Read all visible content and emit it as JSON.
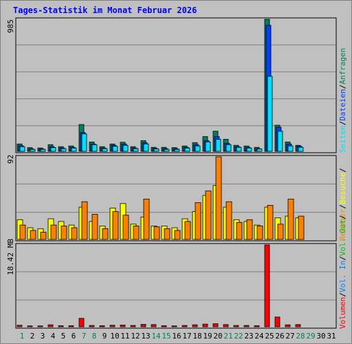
{
  "title": "Tages-Statistik im Monat Februar 2026",
  "days": [
    "1",
    "2",
    "3",
    "4",
    "5",
    "6",
    "7",
    "8",
    "9",
    "10",
    "11",
    "12",
    "13",
    "14",
    "15",
    "16",
    "17",
    "18",
    "19",
    "20",
    "21",
    "22",
    "23",
    "24",
    "25",
    "26",
    "27",
    "28",
    "29",
    "30",
    "31"
  ],
  "weekend_days": [
    "1",
    "7",
    "8",
    "14",
    "15",
    "21",
    "22",
    "28",
    "29"
  ],
  "panels": {
    "top": {
      "max_label": "985"
    },
    "mid": {
      "max_label": "92"
    },
    "bottom": {
      "max_label": "18.42 MB"
    }
  },
  "legend": {
    "right_top_title": "Anfragen",
    "right_top_sep1": "/",
    "right_top_dateien": "Dateien",
    "right_top_sep2": "/",
    "right_top_seiten": "Seiten",
    "right_top_sep3": "/",
    "right_mid_besuche": "Besuche",
    "right_mid_sep1": "/",
    "right_mid_rechner": "Rechner",
    "right_mid_sep2": "/",
    "right_bottom_volout": "Vol. Out",
    "right_bottom_sep1": "/",
    "right_bottom_volin": "Vol. In",
    "right_bottom_sep2": "/",
    "right_bottom_volumen": "Volumen"
  },
  "colors": {
    "anfragen": "#00805C",
    "dateien": "#0040FF",
    "seiten": "#00E0FF",
    "besuche": "#FFFF00",
    "rechner": "#FF8000",
    "volumen": "#FF0000",
    "vol_in": "#0080FF",
    "vol_out": "#00C000",
    "title": "#0000FF",
    "weekday_label": "#000000",
    "weekend_label": "#00805C"
  },
  "chart_data": [
    {
      "type": "bar",
      "name": "hits_files_pages",
      "categories": [
        "1",
        "2",
        "3",
        "4",
        "5",
        "6",
        "7",
        "8",
        "9",
        "10",
        "11",
        "12",
        "13",
        "14",
        "15",
        "16",
        "17",
        "18",
        "19",
        "20",
        "21",
        "22",
        "23",
        "24",
        "25",
        "26",
        "27",
        "28",
        "29",
        "30",
        "31"
      ],
      "ylim": [
        0,
        985
      ],
      "series": [
        {
          "name": "Anfragen",
          "values": [
            55,
            28,
            25,
            50,
            35,
            40,
            200,
            70,
            35,
            55,
            68,
            35,
            80,
            30,
            30,
            28,
            40,
            65,
            110,
            150,
            90,
            45,
            40,
            30,
            985,
            195,
            70,
            45,
            0,
            0,
            0
          ]
        },
        {
          "name": "Dateien",
          "values": [
            42,
            18,
            18,
            35,
            25,
            30,
            140,
            55,
            25,
            45,
            55,
            25,
            65,
            22,
            20,
            20,
            30,
            50,
            80,
            110,
            60,
            35,
            30,
            20,
            940,
            180,
            55,
            38,
            0,
            0,
            0
          ]
        },
        {
          "name": "Seiten",
          "values": [
            35,
            15,
            15,
            28,
            20,
            25,
            130,
            50,
            20,
            38,
            45,
            20,
            55,
            18,
            15,
            15,
            25,
            40,
            70,
            90,
            50,
            30,
            25,
            18,
            560,
            150,
            40,
            30,
            0,
            0,
            0
          ]
        }
      ]
    },
    {
      "type": "bar",
      "name": "visits_hosts",
      "categories": [
        "1",
        "2",
        "3",
        "4",
        "5",
        "6",
        "7",
        "8",
        "9",
        "10",
        "11",
        "12",
        "13",
        "14",
        "15",
        "16",
        "17",
        "18",
        "19",
        "20",
        "21",
        "22",
        "23",
        "24",
        "25",
        "26",
        "27",
        "28",
        "29",
        "30",
        "31"
      ],
      "ylim": [
        0,
        92
      ],
      "series": [
        {
          "name": "Besuche",
          "values": [
            22,
            13,
            12,
            23,
            20,
            16,
            36,
            20,
            15,
            35,
            40,
            17,
            25,
            15,
            15,
            13,
            23,
            31,
            49,
            60,
            36,
            22,
            20,
            16,
            36,
            24,
            26,
            24,
            0,
            0,
            0
          ]
        },
        {
          "name": "Rechner",
          "values": [
            16,
            10,
            8,
            16,
            15,
            13,
            42,
            28,
            12,
            31,
            27,
            15,
            45,
            14,
            12,
            10,
            20,
            41,
            54,
            92,
            42,
            19,
            22,
            15,
            38,
            17,
            45,
            26,
            0,
            0,
            0
          ]
        }
      ]
    },
    {
      "type": "bar",
      "name": "volume",
      "categories": [
        "1",
        "2",
        "3",
        "4",
        "5",
        "6",
        "7",
        "8",
        "9",
        "10",
        "11",
        "12",
        "13",
        "14",
        "15",
        "16",
        "17",
        "18",
        "19",
        "20",
        "21",
        "22",
        "23",
        "24",
        "25",
        "26",
        "27",
        "28",
        "29",
        "30",
        "31"
      ],
      "ylim": [
        0,
        18.42
      ],
      "ylabel": "MB",
      "series": [
        {
          "name": "Volumen",
          "values": [
            0.35,
            0.2,
            0.2,
            0.45,
            0.25,
            0.25,
            1.9,
            0.3,
            0.25,
            0.35,
            0.4,
            0.3,
            0.55,
            0.5,
            0.25,
            0.2,
            0.3,
            0.45,
            0.6,
            0.7,
            0.5,
            0.3,
            0.3,
            0.25,
            18.42,
            2.2,
            0.45,
            0.5,
            0,
            0,
            0
          ]
        }
      ]
    }
  ]
}
